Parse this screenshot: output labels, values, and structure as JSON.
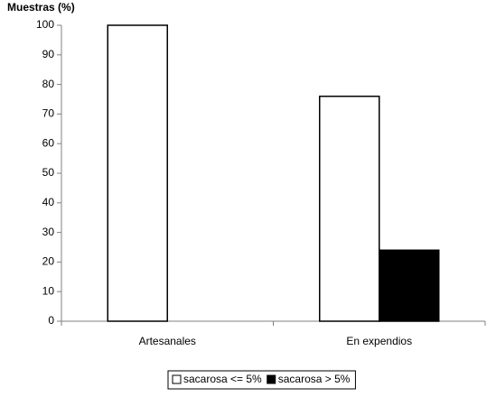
{
  "chart_data": {
    "type": "bar",
    "y_label": "Muestras (%)",
    "categories": [
      "Artesanales",
      "En expendios"
    ],
    "series": [
      {
        "name": "sacarosa <= 5%",
        "color": "#ffffff",
        "values": [
          100,
          76
        ]
      },
      {
        "name": "sacarosa > 5%",
        "color": "#000000",
        "values": [
          0,
          24
        ]
      }
    ],
    "ylim": [
      0,
      100
    ],
    "yticks": [
      0,
      10,
      20,
      30,
      40,
      50,
      60,
      70,
      80,
      90,
      100
    ],
    "legend": "bottom"
  }
}
